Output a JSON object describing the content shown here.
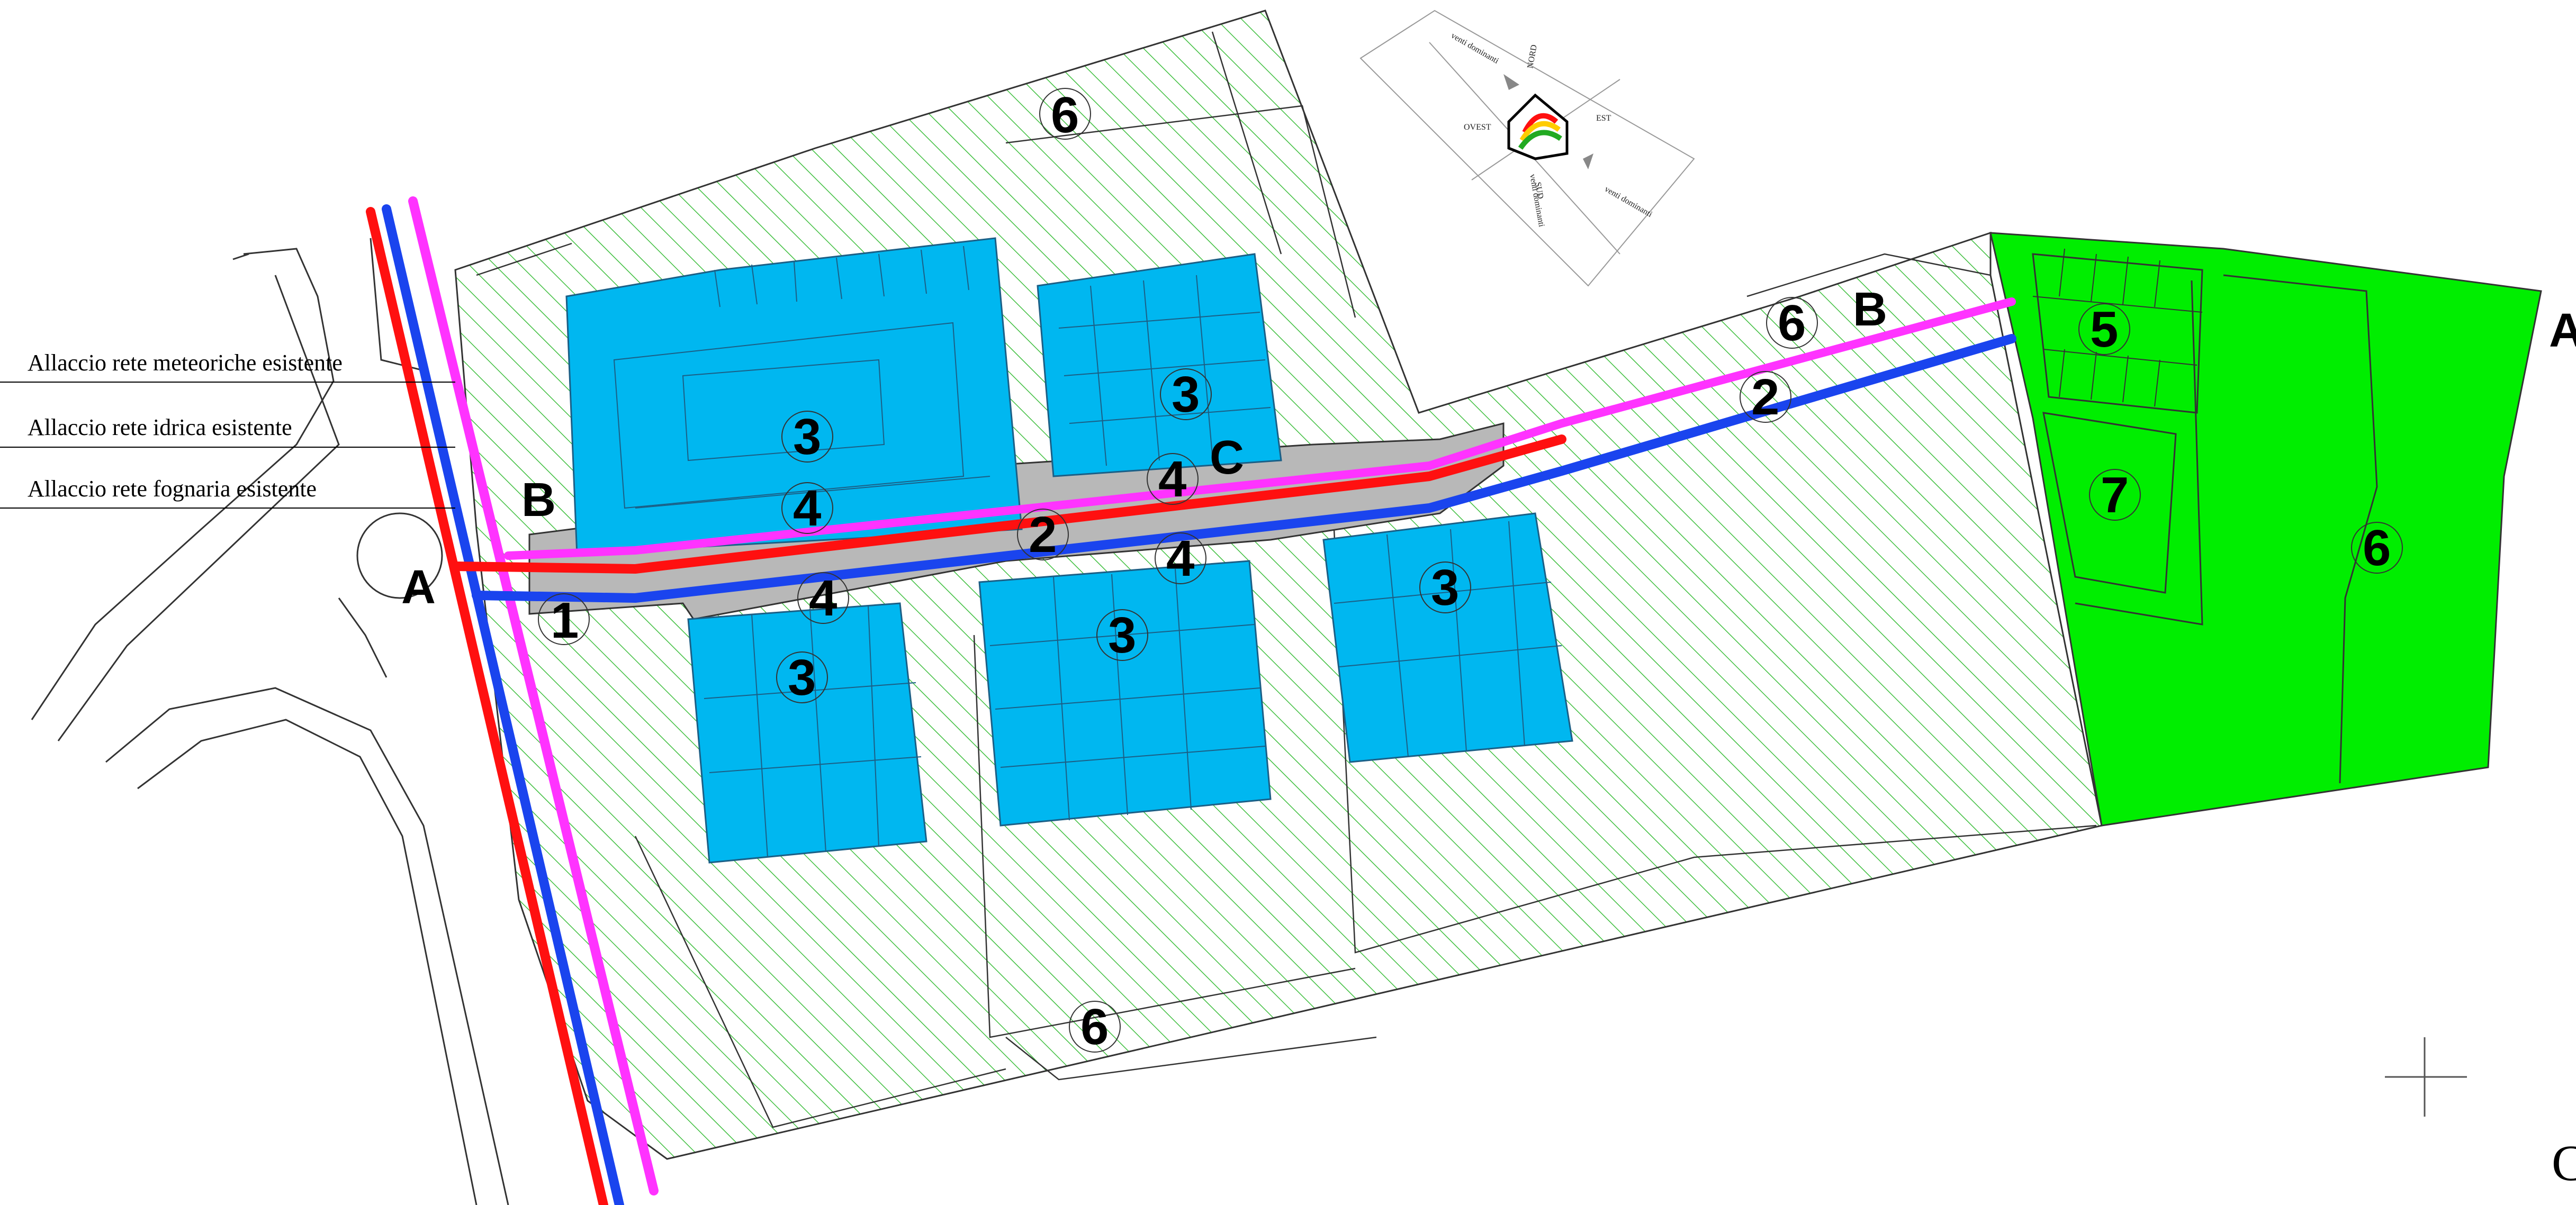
{
  "legend": {
    "meteoriche": "Allaccio rete meteoriche esistente",
    "idrica": "Allaccio rete idrica esistente",
    "fognaria": "Allaccio rete fognaria esistente"
  },
  "compass": {
    "nord": "NORD",
    "est": "EST",
    "sud": "SUD",
    "ovest": "OVEST",
    "wind_top": "venti dominanti",
    "wind_bottom": "venti dominanti",
    "wind_left": "venti dominanti"
  },
  "labels": {
    "n1": "1",
    "n2": "2",
    "n3": "3",
    "n4": "4",
    "n5": "5",
    "n6": "6",
    "n7": "7",
    "a": "A",
    "b": "B",
    "c": "C",
    "edge_a": "A",
    "edge_c": "C"
  },
  "colors": {
    "meteoriche": "#ff33ff",
    "idrica": "#1a44ee",
    "fognaria": "#ff1010",
    "buildings": "#00b7f0",
    "green_area": "#00ee00",
    "hatch": "#3fbf3f",
    "road": "#b8b8b8"
  }
}
